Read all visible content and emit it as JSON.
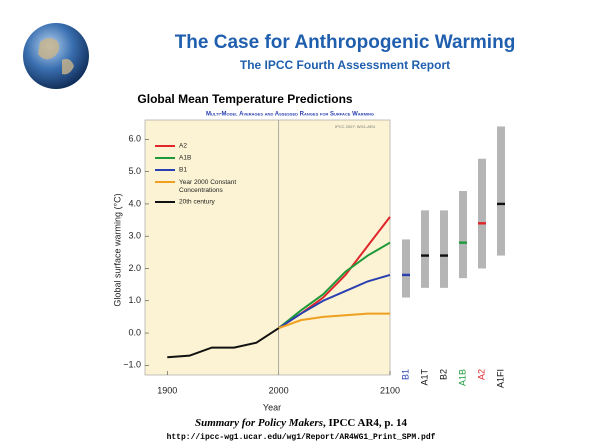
{
  "slide": {
    "title": "The Case for Anthropogenic Warming",
    "subtitle": "The IPCC Fourth Assessment Report",
    "caption_italic": "Summary for Policy Makers",
    "caption_rest": ", IPCC AR4, p. 14",
    "url": "http://ipcc-wg1.ucar.edu/wg1/Report/AR4WG1_Print_SPM.pdf"
  },
  "chart_data": {
    "type": "line",
    "title": "Global Mean Temperature Predictions",
    "subtitle": "Multi-Model Averages and Assessed Ranges for Surface Warming",
    "credit": "IPCC 2007: WG1-AR4",
    "y_label": "Global surface warming (°C)",
    "x_label": "Year",
    "x": [
      1900,
      1920,
      1940,
      1960,
      1980,
      2000,
      2020,
      2040,
      2060,
      2080,
      2100
    ],
    "xlim": [
      1880,
      2100
    ],
    "xticks": [
      1900,
      2000,
      2100
    ],
    "ylim": [
      -1.3,
      6.6
    ],
    "yticks": [
      {
        "value": -1,
        "label": "−1.0"
      },
      {
        "value": 0,
        "label": "0.0"
      },
      {
        "value": 1,
        "label": "1.0"
      },
      {
        "value": 2,
        "label": "2.0"
      },
      {
        "value": 3,
        "label": "3.0"
      },
      {
        "value": 4,
        "label": "4.0"
      },
      {
        "value": 5,
        "label": "5.0"
      },
      {
        "value": 6,
        "label": "6.0"
      }
    ],
    "series": [
      {
        "name": "A2",
        "color": "#e0262b",
        "values": [
          null,
          null,
          null,
          null,
          null,
          0.15,
          0.6,
          1.1,
          1.8,
          2.7,
          3.6
        ]
      },
      {
        "name": "A1B",
        "color": "#1f9a3a",
        "values": [
          null,
          null,
          null,
          null,
          null,
          0.15,
          0.7,
          1.2,
          1.9,
          2.4,
          2.8
        ]
      },
      {
        "name": "B1",
        "color": "#2a3fb0",
        "values": [
          null,
          null,
          null,
          null,
          null,
          0.15,
          0.6,
          1.0,
          1.3,
          1.6,
          1.8
        ]
      },
      {
        "name": "Year 2000 Constant Concentrations",
        "color": "#f0a020",
        "values": [
          null,
          null,
          null,
          null,
          null,
          0.15,
          0.4,
          0.5,
          0.55,
          0.6,
          0.6
        ]
      },
      {
        "name": "20th century",
        "color": "#111111",
        "values": [
          -0.75,
          -0.7,
          -0.45,
          -0.45,
          -0.3,
          0.15,
          null,
          null,
          null,
          null,
          null
        ]
      }
    ],
    "ranges": {
      "categories": [
        "B1",
        "A1T",
        "B2",
        "A1B",
        "A2",
        "A1FI"
      ],
      "low": [
        1.1,
        1.4,
        1.4,
        1.7,
        2.0,
        2.4
      ],
      "high": [
        2.9,
        3.8,
        3.8,
        4.4,
        5.4,
        6.4
      ],
      "best": [
        1.8,
        2.4,
        2.4,
        2.8,
        3.4,
        4.0
      ],
      "colors": [
        "#2a3fb0",
        "#111111",
        "#111111",
        "#1f9a3a",
        "#e0262b",
        "#111111"
      ]
    }
  }
}
